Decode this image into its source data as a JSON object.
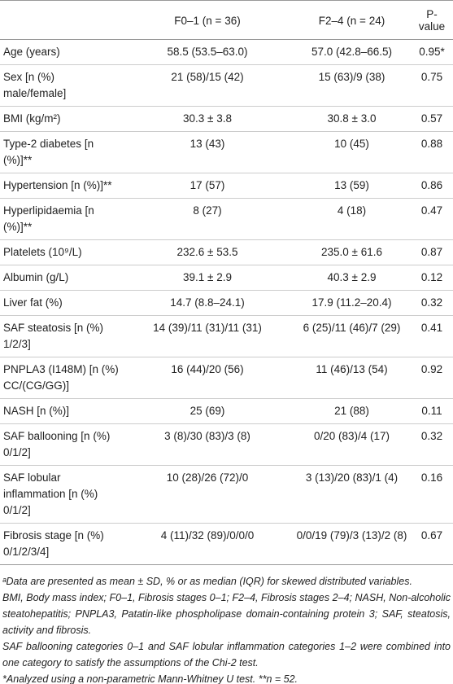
{
  "table": {
    "header": [
      "",
      "F0–1 (n = 36)",
      "F2–4 (n = 24)",
      "P-value"
    ],
    "rows": [
      [
        "Age (years)",
        "58.5 (53.5–63.0)",
        "57.0 (42.8–66.5)",
        "0.95*"
      ],
      [
        "Sex [n (%) male/female]",
        "21 (58)/15 (42)",
        "15 (63)/9 (38)",
        "0.75"
      ],
      [
        "BMI (kg/m²)",
        "30.3 ± 3.8",
        "30.8 ± 3.0",
        "0.57"
      ],
      [
        "Type-2 diabetes [n (%)]**",
        "13 (43)",
        "10 (45)",
        "0.88"
      ],
      [
        "Hypertension [n (%)]**",
        "17 (57)",
        "13 (59)",
        "0.86"
      ],
      [
        "Hyperlipidaemia [n (%)]**",
        "8 (27)",
        "4 (18)",
        "0.47"
      ],
      [
        "Platelets (10⁹/L)",
        "232.6 ± 53.5",
        "235.0 ± 61.6",
        "0.87"
      ],
      [
        "Albumin (g/L)",
        "39.1 ± 2.9",
        "40.3 ± 2.9",
        "0.12"
      ],
      [
        "Liver fat (%)",
        "14.7 (8.8–24.1)",
        "17.9 (11.2–20.4)",
        "0.32"
      ],
      [
        "SAF steatosis [n (%) 1/2/3]",
        "14 (39)/11 (31)/11 (31)",
        "6 (25)/11 (46)/7 (29)",
        "0.41"
      ],
      [
        "PNPLA3 (I148M) [n (%) CC/(CG/GG)]",
        "16 (44)/20 (56)",
        "11 (46)/13 (54)",
        "0.92"
      ],
      [
        "NASH [n (%)]",
        "25 (69)",
        "21 (88)",
        "0.11"
      ],
      [
        "SAF ballooning [n (%) 0/1/2]",
        "3 (8)/30 (83)/3 (8)",
        "0/20 (83)/4 (17)",
        "0.32"
      ],
      [
        "SAF lobular inflammation [n (%) 0/1/2]",
        "10 (28)/26 (72)/0",
        "3 (13)/20 (83)/1 (4)",
        "0.16"
      ],
      [
        "Fibrosis stage [n (%) 0/1/2/3/4]",
        "4 (11)/32 (89)/0/0/0",
        "0/0/19 (79)/3 (13)/2 (8)",
        "0.67"
      ]
    ]
  },
  "footnotes": [
    "ᵃData are presented as mean ± SD, % or as median (IQR) for skewed distributed variables.",
    "BMI, Body mass index; F0–1, Fibrosis stages 0–1; F2–4, Fibrosis stages 2–4; NASH, Non-alcoholic steatohepatitis; PNPLA3, Patatin-like phospholipase domain-containing protein 3; SAF, steatosis, activity and fibrosis.",
    "SAF ballooning categories 0–1 and SAF lobular inflammation categories 1–2 were combined into one category to satisfy the assumptions of the Chi-2 test.",
    "*Analyzed using a non-parametric Mann-Whitney U test. **n = 52."
  ]
}
